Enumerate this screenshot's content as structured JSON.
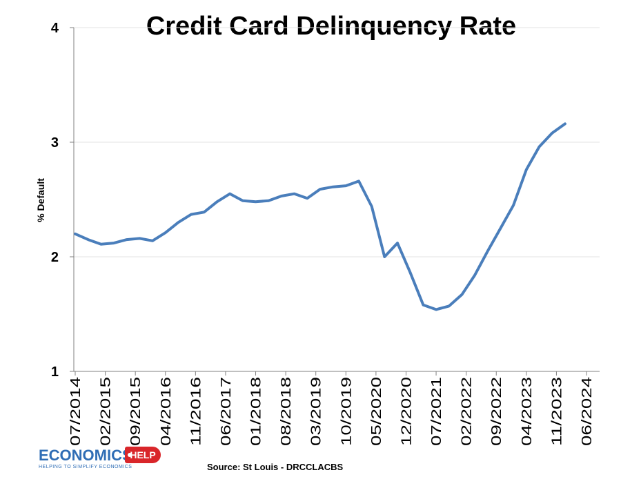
{
  "chart_data": {
    "type": "line",
    "title": "Credit Card Delinquency Rate",
    "ylabel": "% Default",
    "xlabel": "",
    "ylim": [
      1,
      4
    ],
    "yticks": [
      1,
      2,
      3,
      4
    ],
    "grid": "horizontal",
    "legend": "none",
    "line_color": "#4a7ebb",
    "x_tick_labels": [
      "07/2014",
      "02/2015",
      "09/2015",
      "04/2016",
      "11/2016",
      "06/2017",
      "01/2018",
      "08/2018",
      "03/2019",
      "10/2019",
      "05/2020",
      "12/2020",
      "07/2021",
      "02/2022",
      "09/2022",
      "04/2023",
      "11/2023",
      "06/2024"
    ],
    "series": [
      {
        "x": [
          "2014-07",
          "2014-10",
          "2015-01",
          "2015-04",
          "2015-07",
          "2015-10",
          "2016-01",
          "2016-04",
          "2016-07",
          "2016-10",
          "2017-01",
          "2017-04",
          "2017-07",
          "2017-10",
          "2018-01",
          "2018-04",
          "2018-07",
          "2018-10",
          "2019-01",
          "2019-04",
          "2019-07",
          "2019-10",
          "2020-01",
          "2020-04",
          "2020-07",
          "2020-10",
          "2021-01",
          "2021-04",
          "2021-07",
          "2021-10",
          "2022-01",
          "2022-04",
          "2022-07",
          "2022-10",
          "2023-01",
          "2023-04",
          "2023-07",
          "2023-10",
          "2024-01"
        ],
        "values": [
          2.2,
          2.15,
          2.11,
          2.12,
          2.15,
          2.16,
          2.14,
          2.21,
          2.3,
          2.37,
          2.39,
          2.48,
          2.55,
          2.49,
          2.48,
          2.49,
          2.53,
          2.55,
          2.51,
          2.59,
          2.61,
          2.62,
          2.66,
          2.44,
          2.0,
          2.12,
          1.86,
          1.58,
          1.54,
          1.57,
          1.67,
          1.84,
          2.05,
          2.25,
          2.45,
          2.76,
          2.96,
          3.08,
          3.16
        ]
      }
    ]
  },
  "source_text": "Source: St Louis - DRCCLACBS",
  "logo": {
    "main": "ECONOMICS",
    "tag": "HELP",
    "tagline": "HELPING TO SIMPLIFY ECONOMICS"
  }
}
